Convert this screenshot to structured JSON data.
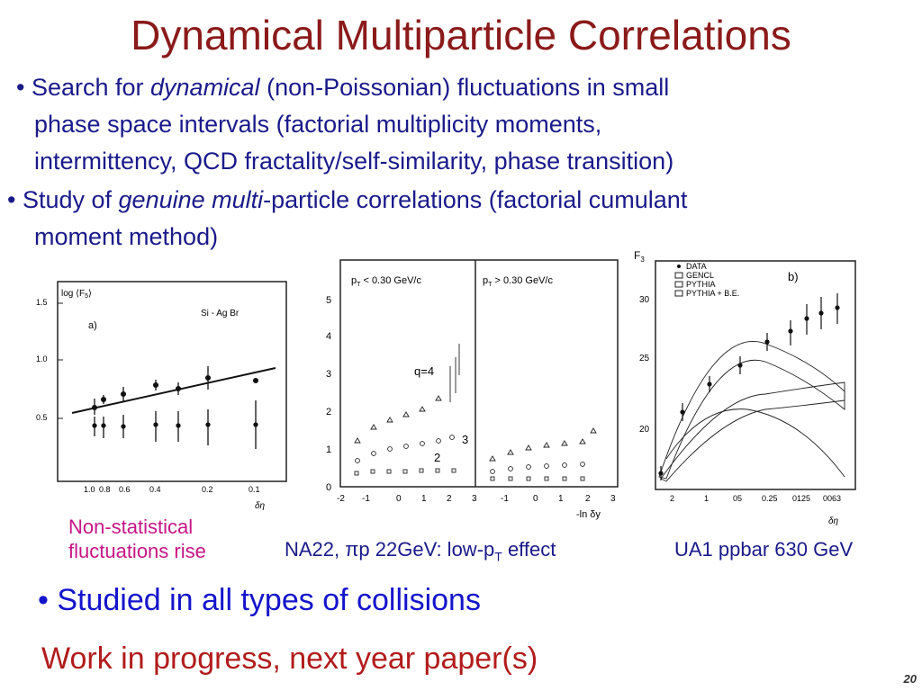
{
  "slide": {
    "title": "Dynamical Multiparticle Correlations",
    "page_number": "20"
  },
  "bullets": [
    {
      "marker": "•",
      "line1_pre": " Search for ",
      "line1_em": "dynamical",
      "line1_post": " (non-Poissonian) fluctuations in small",
      "line2": "phase space intervals (factorial multiplicity moments,",
      "line3": "intermittency, QCD  fractality/self-similarity, phase transition)"
    },
    {
      "marker": "•",
      "line1_pre": " Study of ",
      "line1_em": "genuine multi",
      "line1_post": "-particle correlations (factorial cumulant",
      "line2": "moment method)"
    }
  ],
  "figure_a": {
    "ylabel": "log ⟨F",
    "ylabel_sub": "5",
    "ylabel_close": "⟩",
    "panel_label": "a)",
    "system": "Si - Ag Br",
    "yticks": [
      "1.5",
      "1.0",
      "0.5"
    ],
    "xticks": [
      "1.0",
      "0.8",
      "0.6",
      "0.4",
      "0.2",
      "0.1"
    ],
    "xlabel": "δη"
  },
  "figure_b": {
    "left_header": "p",
    "left_header_sub": "T",
    "left_header_post": " < 0.30 GeV/c",
    "right_header": "p",
    "right_header_sub": "T",
    "right_header_post": " > 0.30 GeV/c",
    "yticks": [
      "5",
      "4",
      "3",
      "2",
      "1",
      "0"
    ],
    "xticks_left": [
      "-2",
      "-1",
      "0",
      "1",
      "2"
    ],
    "xticks_right": [
      "3",
      "-1",
      "0",
      "1",
      "2",
      "3"
    ],
    "xlabel": "-ln δy",
    "labels": [
      "q=4",
      "3",
      "2"
    ]
  },
  "figure_c": {
    "ylabel": "F",
    "ylabel_sub": "3",
    "panel_label": "b)",
    "legend": [
      "DATA",
      "GENCL",
      "PYTHIA",
      "PYTHIA + B.E."
    ],
    "yticks": [
      "30",
      "25",
      "20"
    ],
    "xticks": [
      "2",
      "1",
      "05",
      "0.25",
      "0125",
      "0063"
    ],
    "xlabel": "δη"
  },
  "captions": {
    "non_statistical_1": "Non-statistical",
    "non_statistical_2": "fluctuations rise",
    "na22_pre": "NA22, πp 22GeV: low-p",
    "na22_sub": "T",
    "na22_post": " effect",
    "ua1": "UA1 ppbar 630 GeV"
  },
  "bullet3": "• Studied in all types of collisions",
  "work_in_progress": "Work in progress, next year paper(s)"
}
